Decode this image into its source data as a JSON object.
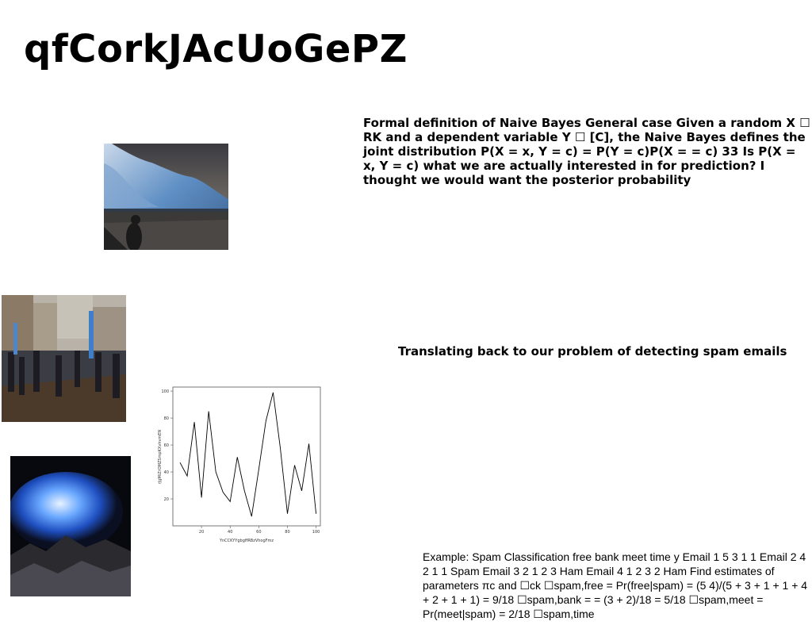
{
  "slide": {
    "title": "qfCorkJAcUoGePZ",
    "paragraph_1": "Formal definition of Naive Bayes General case Given a random X ☐ RK and a dependent variable Y ☐ [C], the Naive Bayes defines the joint distribution P(X = x, Y = c) = P(Y = c)P(X = = c) 33 Is P(X = x, Y = c) what we are actually interested in for prediction? I thought we would want the posterior probability",
    "subheading": "Translating back to our problem of detecting spam emails",
    "paragraph_2": "Example: Spam Classification free bank meet time y Email 1 5 3 1 1 Email 2 4 2 1 1 Spam Email 3 2 1 2 3 Ham Email 4 1 2 3 2 Ham Find estimates of parameters πc and ☐ck ☐spam,free = Pr(free|spam) = (5 4)/(5 + 3 + 1 + 1 + 4 + 2 + 1 + 1) = 9/18 ☐spam,bank = = (3 + 2)/18 = 5/18 ☐spam,meet = Pr(meet|spam) = 2/18 ☐spam,time"
  },
  "images": [
    {
      "name": "stormy-sky-waterfront-photo"
    },
    {
      "name": "street-parade-crowd-photo"
    },
    {
      "name": "blue-glowing-cloud-over-rocks-photo"
    }
  ],
  "chart_data": {
    "type": "line",
    "title": "",
    "xlabel": "YnCCKYYgbgffRBzVhogFmz",
    "ylabel": "rJgMiZrOMZSmpKXvhvmEN",
    "xlim": [
      0,
      103
    ],
    "ylim": [
      0,
      103
    ],
    "xticks": [
      20,
      40,
      60,
      80,
      100
    ],
    "yticks": [
      20,
      40,
      60,
      80,
      100
    ],
    "grid": false,
    "series": [
      {
        "x": [
          5,
          10,
          15,
          20,
          25,
          30,
          35,
          40,
          45,
          50,
          55,
          60,
          65,
          70,
          75,
          80,
          85,
          90,
          95,
          100
        ],
        "y": [
          47,
          37,
          77,
          21,
          85,
          40,
          25,
          18,
          51,
          26,
          7,
          42,
          78,
          99,
          58,
          9,
          45,
          26,
          61,
          9
        ],
        "color": "#000000"
      }
    ]
  }
}
